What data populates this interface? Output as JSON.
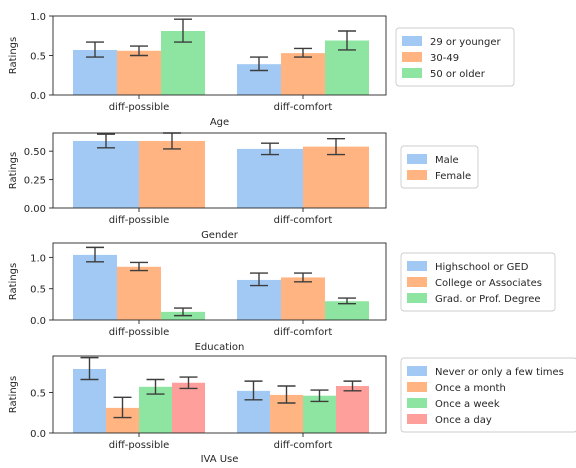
{
  "chart_data": [
    {
      "type": "bar",
      "title": "",
      "xlabel": "Age",
      "ylabel": "Ratings",
      "categories": [
        "diff-possible",
        "diff-comfort"
      ],
      "ylim": [
        0,
        1.0
      ],
      "yticks": [
        "0.0",
        "0.5",
        "1.0"
      ],
      "error_bars": true,
      "legend_position": "right",
      "series": [
        {
          "name": "29 or younger",
          "color": "#a1c9f4",
          "values": [
            0.57,
            0.39
          ],
          "err_low": [
            0.48,
            0.31
          ],
          "err_high": [
            0.67,
            0.48
          ]
        },
        {
          "name": "30-49",
          "color": "#ffb482",
          "values": [
            0.56,
            0.53
          ],
          "err_low": [
            0.5,
            0.48
          ],
          "err_high": [
            0.62,
            0.59
          ]
        },
        {
          "name": "50 or older",
          "color": "#8de5a1",
          "values": [
            0.81,
            0.69
          ],
          "err_low": [
            0.67,
            0.57
          ],
          "err_high": [
            0.96,
            0.81
          ]
        }
      ]
    },
    {
      "type": "bar",
      "title": "",
      "xlabel": "Gender",
      "ylabel": "Ratings",
      "categories": [
        "diff-possible",
        "diff-comfort"
      ],
      "ylim": [
        0,
        0.66
      ],
      "yticks": [
        "0.00",
        "0.25",
        "0.50"
      ],
      "error_bars": true,
      "legend_position": "right",
      "series": [
        {
          "name": "Male",
          "color": "#a1c9f4",
          "values": [
            0.59,
            0.52
          ],
          "err_low": [
            0.53,
            0.47
          ],
          "err_high": [
            0.65,
            0.57
          ]
        },
        {
          "name": "Female",
          "color": "#ffb482",
          "values": [
            0.59,
            0.54
          ],
          "err_low": [
            0.52,
            0.47
          ],
          "err_high": [
            0.66,
            0.61
          ]
        }
      ]
    },
    {
      "type": "bar",
      "title": "",
      "xlabel": "Education",
      "ylabel": "Ratings",
      "categories": [
        "diff-possible",
        "diff-comfort"
      ],
      "ylim": [
        0,
        1.23
      ],
      "yticks": [
        "0.0",
        "0.5",
        "1.0"
      ],
      "error_bars": true,
      "legend_position": "right",
      "series": [
        {
          "name": "Highschool or GED",
          "color": "#a1c9f4",
          "values": [
            1.04,
            0.64
          ],
          "err_low": [
            0.93,
            0.55
          ],
          "err_high": [
            1.16,
            0.75
          ]
        },
        {
          "name": "College or Associates",
          "color": "#ffb482",
          "values": [
            0.85,
            0.68
          ],
          "err_low": [
            0.79,
            0.61
          ],
          "err_high": [
            0.92,
            0.75
          ]
        },
        {
          "name": "Grad. or Prof. Degree",
          "color": "#8de5a1",
          "values": [
            0.13,
            0.3
          ],
          "err_low": [
            0.07,
            0.26
          ],
          "err_high": [
            0.19,
            0.35
          ]
        }
      ]
    },
    {
      "type": "bar",
      "title": "",
      "xlabel": "IVA Use",
      "ylabel": "Ratings",
      "categories": [
        "diff-possible",
        "diff-comfort"
      ],
      "ylim": [
        0,
        0.95
      ],
      "yticks": [
        "0.0",
        "0.5"
      ],
      "error_bars": true,
      "legend_position": "right",
      "series": [
        {
          "name": "Never or only a few times",
          "color": "#a1c9f4",
          "values": [
            0.79,
            0.52
          ],
          "err_low": [
            0.66,
            0.41
          ],
          "err_high": [
            0.93,
            0.64
          ]
        },
        {
          "name": "Once a month",
          "color": "#ffb482",
          "values": [
            0.31,
            0.47
          ],
          "err_low": [
            0.19,
            0.37
          ],
          "err_high": [
            0.44,
            0.58
          ]
        },
        {
          "name": "Once a week",
          "color": "#8de5a1",
          "values": [
            0.57,
            0.46
          ],
          "err_low": [
            0.48,
            0.39
          ],
          "err_high": [
            0.66,
            0.53
          ]
        },
        {
          "name": "Once a day",
          "color": "#ff9f9b",
          "values": [
            0.62,
            0.58
          ],
          "err_low": [
            0.55,
            0.52
          ],
          "err_high": [
            0.69,
            0.64
          ]
        }
      ]
    }
  ]
}
